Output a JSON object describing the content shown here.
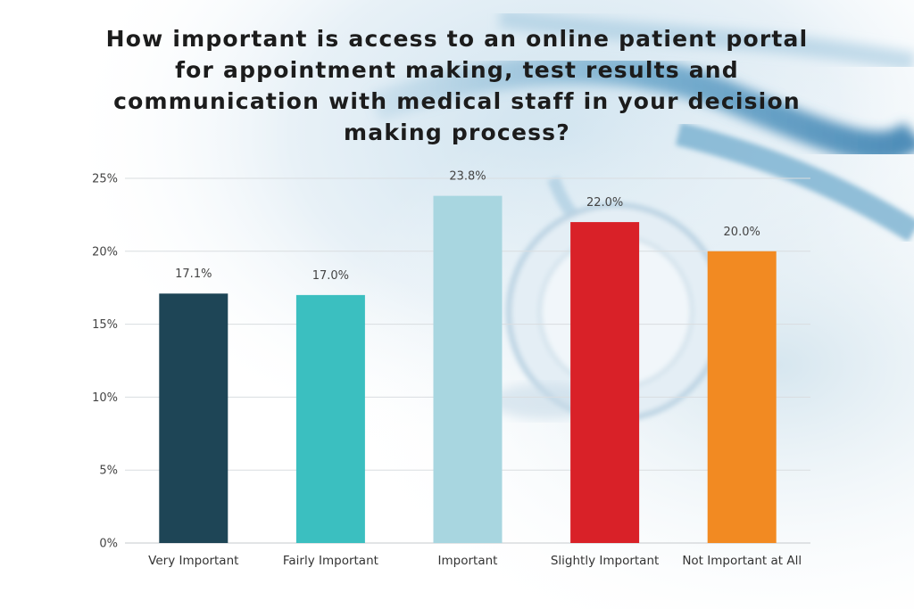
{
  "chart_data": {
    "type": "bar",
    "title": "How important is access to an online patient portal for appointment making, test results and communication with medical staff in your decision making process?",
    "categories": [
      "Very Important",
      "Fairly Important",
      "Important",
      "Slightly Important",
      "Not Important at All"
    ],
    "values": [
      17.1,
      17.0,
      23.8,
      22.0,
      20.0
    ],
    "value_labels": [
      "17.1%",
      "17.0%",
      "23.8%",
      "22.0%",
      "20.0%"
    ],
    "colors": [
      "#1e4556",
      "#3bbfc0",
      "#a8d6e0",
      "#d92128",
      "#f28a22"
    ],
    "yticks": [
      0,
      5,
      10,
      15,
      20,
      25
    ],
    "ytick_labels": [
      "0%",
      "5%",
      "10%",
      "15%",
      "20%",
      "25%"
    ],
    "ylim": [
      0,
      25
    ],
    "xlabel": "",
    "ylabel": "",
    "grid": true,
    "legend": "none"
  }
}
